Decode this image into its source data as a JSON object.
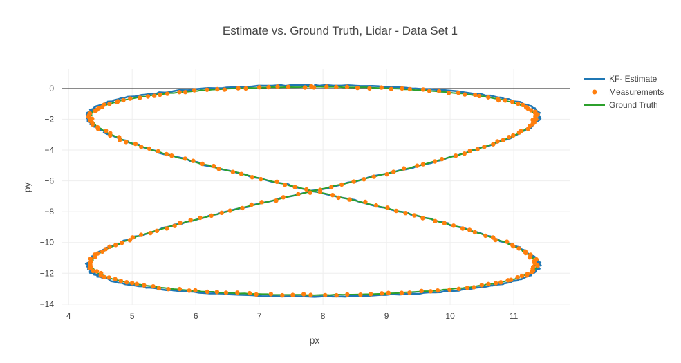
{
  "chart_data": {
    "type": "scatter",
    "title": "Estimate vs. Ground Truth, Lidar - Data Set 1",
    "xlabel": "px",
    "ylabel": "py",
    "xlim": [
      3.9,
      11.88
    ],
    "ylim": [
      -14.05,
      1.25
    ],
    "xticks": [
      "4",
      "5",
      "6",
      "7",
      "8",
      "9",
      "10",
      "11"
    ],
    "yticks": [
      "0",
      "−2",
      "−4",
      "−6",
      "−8",
      "−10",
      "−12",
      "−14"
    ],
    "grid": true,
    "legend_position": "top-right",
    "zero_line": true,
    "series": [
      {
        "name": "KF- Estimate",
        "mode": "line",
        "color": "#1f77b4",
        "curve": {
          "cx": 7.85,
          "cy": -6.65,
          "ax": 3.55,
          "ay": 6.85,
          "phase_start": 0.0,
          "phase_end": 6.2832,
          "samples": 420,
          "jitter": 0.07,
          "seed": 11
        }
      },
      {
        "name": "Measurements",
        "mode": "markers",
        "color": "#ff7f0e",
        "curve": {
          "cx": 7.85,
          "cy": -6.65,
          "ax": 3.5,
          "ay": 6.75,
          "phase_start": 0.0,
          "phase_end": 6.2832,
          "samples": 250,
          "jitter": 0.09,
          "seed": 23
        }
      },
      {
        "name": "Ground Truth",
        "mode": "line",
        "color": "#2ca02c",
        "curve": {
          "cx": 7.85,
          "cy": -6.65,
          "ax": 3.5,
          "ay": 6.75,
          "phase_start": 0.0,
          "phase_end": 6.2832,
          "samples": 480,
          "jitter": 0.035,
          "seed": 37
        }
      }
    ]
  }
}
